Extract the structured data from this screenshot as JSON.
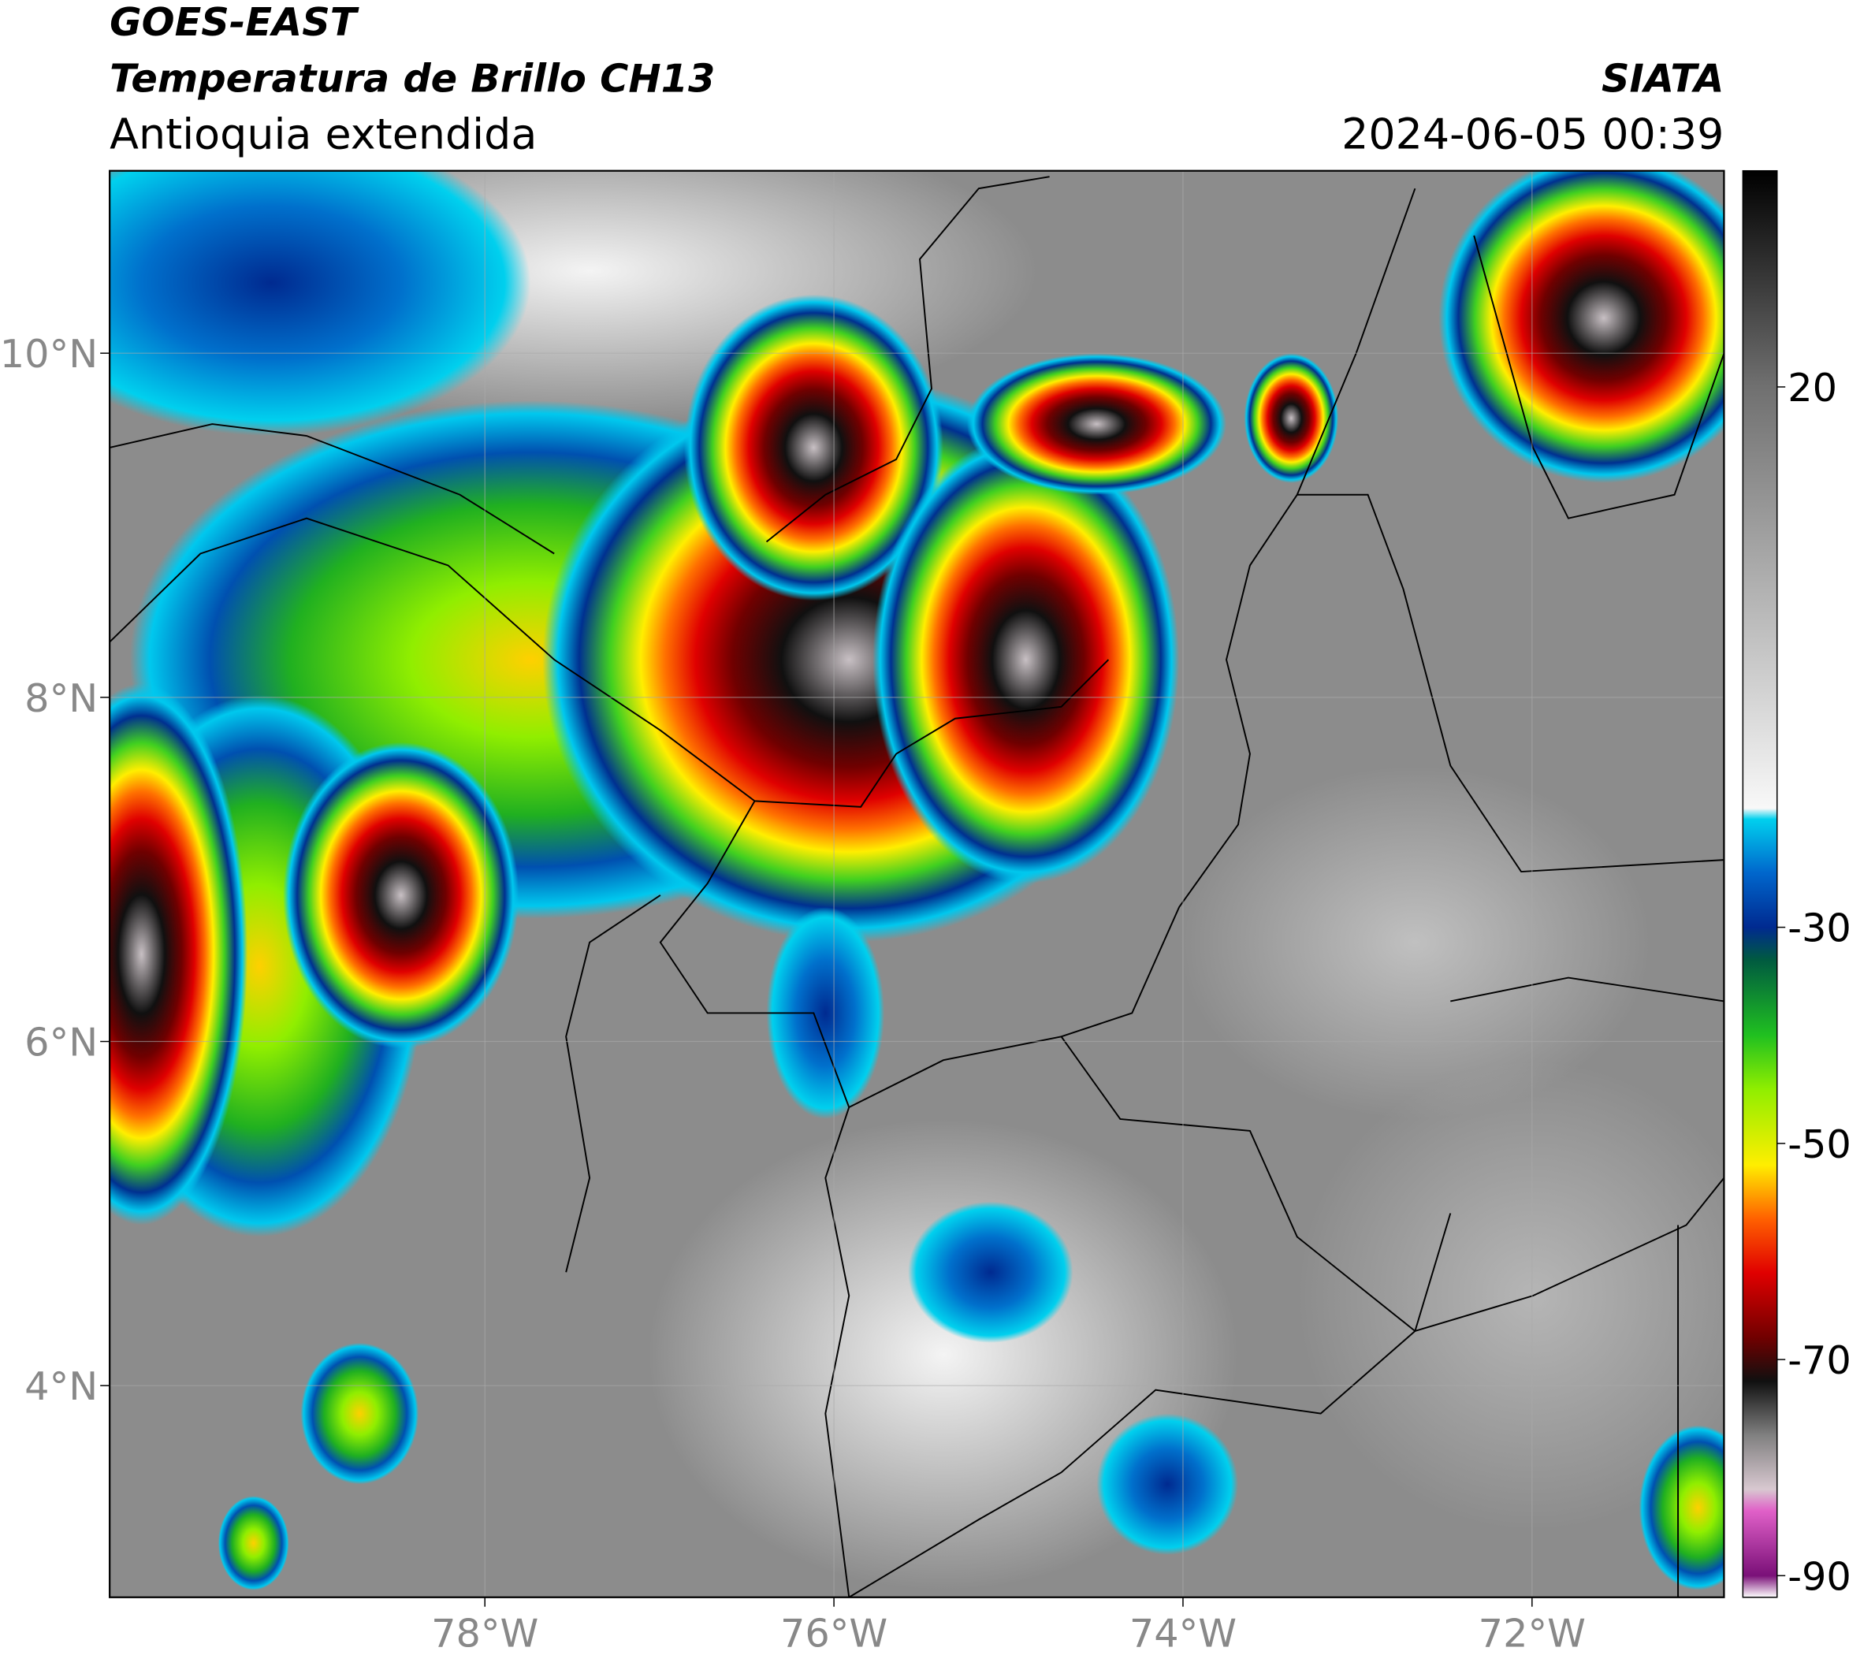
{
  "header": {
    "satellite": "GOES-EAST",
    "product": "Temperatura de Brillo CH13",
    "region": "Antioquia extendida",
    "source": "SIATA",
    "datetime": "2024-06-05 00:39"
  },
  "map": {
    "xlim": [
      -80.15,
      -70.9
    ],
    "ylim": [
      2.77,
      11.06
    ],
    "xticks": [
      {
        "value": -78,
        "label": "78°W"
      },
      {
        "value": -76,
        "label": "76°W"
      },
      {
        "value": -74,
        "label": "74°W"
      },
      {
        "value": -72,
        "label": "72°W"
      }
    ],
    "yticks": [
      {
        "value": 4,
        "label": "4°N"
      },
      {
        "value": 6,
        "label": "6°N"
      },
      {
        "value": 8,
        "label": "8°N"
      },
      {
        "value": 10,
        "label": "10°N"
      }
    ],
    "grid": true
  },
  "colorbar": {
    "range": [
      -92,
      40
    ],
    "ticks": [
      -90,
      -70,
      -50,
      -30,
      20
    ],
    "stops": [
      [
        -92,
        "#ffffff"
      ],
      [
        -90,
        "#7a1078"
      ],
      [
        -84,
        "#e060c8"
      ],
      [
        -82,
        "#d8c8d0"
      ],
      [
        -77,
        "#808080"
      ],
      [
        -72,
        "#101010"
      ],
      [
        -68,
        "#700000"
      ],
      [
        -62,
        "#e00000"
      ],
      [
        -57,
        "#ff6000"
      ],
      [
        -52,
        "#ffee00"
      ],
      [
        -45,
        "#90ee00"
      ],
      [
        -40,
        "#20c020"
      ],
      [
        -33,
        "#005a40"
      ],
      [
        -30,
        "#002a90"
      ],
      [
        -25,
        "#0066cc"
      ],
      [
        -20,
        "#00d0ee"
      ],
      [
        -19,
        "#f8f8f8"
      ],
      [
        20,
        "#707070"
      ],
      [
        40,
        "#000000"
      ]
    ]
  }
}
